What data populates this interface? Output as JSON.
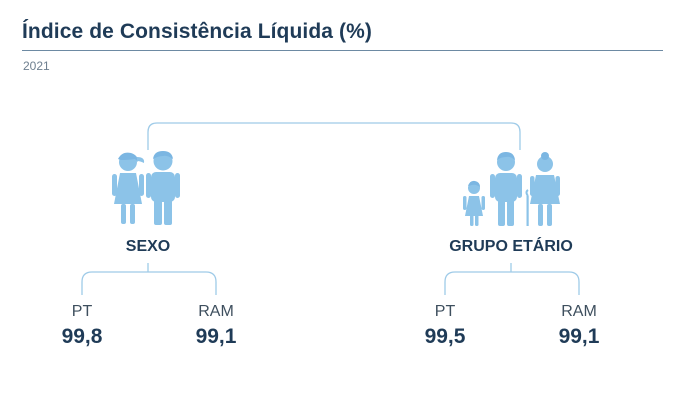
{
  "header": {
    "title": "Índice de Consistência Líquida (%)",
    "subtitle": "2021"
  },
  "colors": {
    "figure": "#8cc3e8",
    "figure_skin": "#6fb1e0",
    "connector": "#9fcbe8",
    "title": "#1f3b57"
  },
  "groups": {
    "sexo": {
      "label": "SEXO",
      "icon": "man-woman-icon",
      "pt": {
        "label": "PT",
        "value": "99,8"
      },
      "ram": {
        "label": "RAM",
        "value": "99,1"
      }
    },
    "etario": {
      "label": "GRUPO ETÁRIO",
      "icon": "child-adult-elder-icon",
      "pt": {
        "label": "PT",
        "value": "99,5"
      },
      "ram": {
        "label": "RAM",
        "value": "99,1"
      }
    }
  }
}
